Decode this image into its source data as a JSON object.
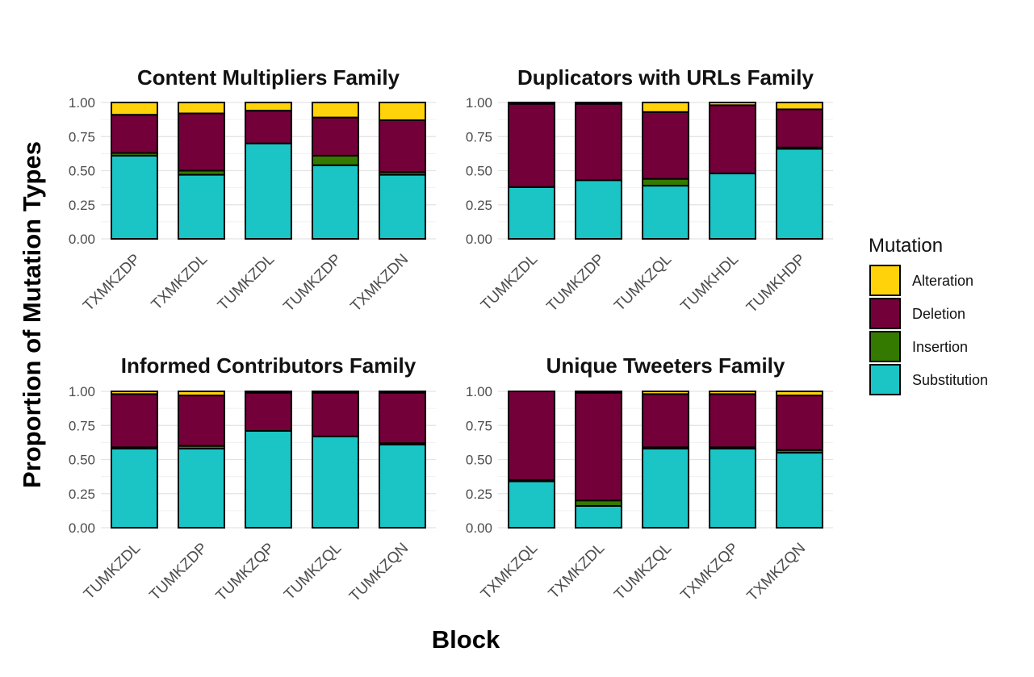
{
  "chart_data": {
    "type": "bar",
    "stacked": true,
    "ylabel": "Proportion of Mutation Types",
    "xlabel": "Block",
    "ylim": [
      0,
      1
    ],
    "yticks": [
      "0.00",
      "0.25",
      "0.50",
      "0.75",
      "1.00"
    ],
    "legend": {
      "title": "Mutation",
      "position": "right",
      "entries": [
        {
          "name": "Alteration",
          "color": "#FFD20A"
        },
        {
          "name": "Deletion",
          "color": "#74003A"
        },
        {
          "name": "Insertion",
          "color": "#357A00"
        },
        {
          "name": "Substitution",
          "color": "#1CC5C5"
        }
      ]
    },
    "stack_order_bottom_to_top": [
      "Substitution",
      "Insertion",
      "Deletion",
      "Alteration"
    ],
    "panels": [
      {
        "title": "Content Multipliers Family",
        "categories": [
          "TXMKZDP",
          "TXMKZDL",
          "TUMKZDL",
          "TUMKZDP",
          "TXMKZDN"
        ],
        "series": [
          {
            "name": "Substitution",
            "values": [
              0.61,
              0.47,
              0.7,
              0.54,
              0.47
            ]
          },
          {
            "name": "Insertion",
            "values": [
              0.02,
              0.03,
              0.0,
              0.07,
              0.02
            ]
          },
          {
            "name": "Deletion",
            "values": [
              0.28,
              0.42,
              0.24,
              0.28,
              0.38
            ]
          },
          {
            "name": "Alteration",
            "values": [
              0.09,
              0.08,
              0.06,
              0.11,
              0.13
            ]
          }
        ]
      },
      {
        "title": "Duplicators with URLs Family",
        "categories": [
          "TUMKZDL",
          "TUMKZDP",
          "TUMKZQL",
          "TUMKHDL",
          "TUMKHDP"
        ],
        "series": [
          {
            "name": "Substitution",
            "values": [
              0.38,
              0.43,
              0.39,
              0.48,
              0.66
            ]
          },
          {
            "name": "Insertion",
            "values": [
              0.0,
              0.0,
              0.05,
              0.0,
              0.01
            ]
          },
          {
            "name": "Deletion",
            "values": [
              0.61,
              0.56,
              0.49,
              0.5,
              0.28
            ]
          },
          {
            "name": "Alteration",
            "values": [
              0.01,
              0.01,
              0.07,
              0.02,
              0.05
            ]
          }
        ]
      },
      {
        "title": "Informed Contributors Family",
        "categories": [
          "TUMKZDL",
          "TUMKZDP",
          "TUMKZQP",
          "TUMKZQL",
          "TUMKZQN"
        ],
        "series": [
          {
            "name": "Substitution",
            "values": [
              0.58,
              0.58,
              0.71,
              0.67,
              0.61
            ]
          },
          {
            "name": "Insertion",
            "values": [
              0.01,
              0.02,
              0.0,
              0.0,
              0.01
            ]
          },
          {
            "name": "Deletion",
            "values": [
              0.39,
              0.37,
              0.28,
              0.32,
              0.37
            ]
          },
          {
            "name": "Alteration",
            "values": [
              0.02,
              0.03,
              0.01,
              0.01,
              0.01
            ]
          }
        ]
      },
      {
        "title": "Unique Tweeters Family",
        "categories": [
          "TXMKZQL",
          "TXMKZDL",
          "TUMKZQL",
          "TXMKZQP",
          "TXMKZQN"
        ],
        "series": [
          {
            "name": "Substitution",
            "values": [
              0.34,
              0.16,
              0.58,
              0.58,
              0.55
            ]
          },
          {
            "name": "Insertion",
            "values": [
              0.01,
              0.04,
              0.01,
              0.01,
              0.02
            ]
          },
          {
            "name": "Deletion",
            "values": [
              0.65,
              0.79,
              0.39,
              0.39,
              0.4
            ]
          },
          {
            "name": "Alteration",
            "values": [
              0.0,
              0.01,
              0.02,
              0.02,
              0.03
            ]
          }
        ]
      }
    ]
  }
}
